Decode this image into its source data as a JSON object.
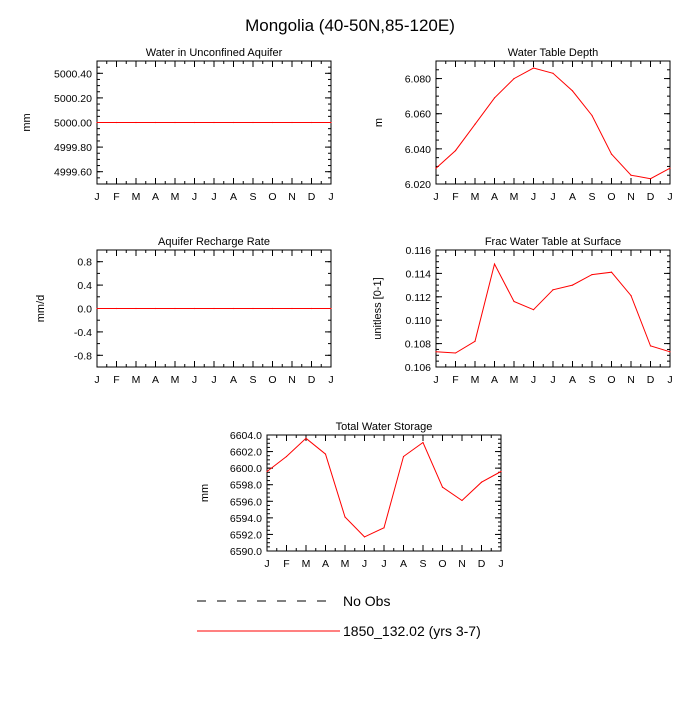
{
  "title": "Mongolia (40-50N,85-120E)",
  "months": [
    "J",
    "F",
    "M",
    "A",
    "M",
    "J",
    "J",
    "A",
    "S",
    "O",
    "N",
    "D",
    "J"
  ],
  "legend": {
    "obs_label": "No Obs",
    "model_label": "1850_132.02 (yrs 3-7)",
    "obs_color": "#000000",
    "model_color": "#ff0000"
  },
  "chart_data": [
    {
      "type": "line",
      "title": "Water in Unconfined Aquifer",
      "ylabel": "mm",
      "ylim": [
        4999.5,
        5000.5
      ],
      "yticks": [
        4999.6,
        4999.8,
        5000.0,
        5000.2,
        5000.4
      ],
      "ytick_labels": [
        "4999.60",
        "4999.80",
        "5000.00",
        "5000.20",
        "5000.40"
      ],
      "ytick_minor": 0.05,
      "x": [
        0,
        1,
        2,
        3,
        4,
        5,
        6,
        7,
        8,
        9,
        10,
        11,
        12
      ],
      "series": [
        {
          "name": "1850_132.02 (yrs 3-7)",
          "color": "#ff0000",
          "values": [
            5000,
            5000,
            5000,
            5000,
            5000,
            5000,
            5000,
            5000,
            5000,
            5000,
            5000,
            5000,
            5000
          ]
        }
      ]
    },
    {
      "type": "line",
      "title": "Water Table Depth",
      "ylabel": "m",
      "ylim": [
        6.02,
        6.09
      ],
      "yticks": [
        6.02,
        6.04,
        6.06,
        6.08
      ],
      "ytick_labels": [
        "6.020",
        "6.040",
        "6.060",
        "6.080"
      ],
      "ytick_minor": 0.005,
      "x": [
        0,
        1,
        2,
        3,
        4,
        5,
        6,
        7,
        8,
        9,
        10,
        11,
        12
      ],
      "series": [
        {
          "name": "1850_132.02 (yrs 3-7)",
          "color": "#ff0000",
          "values": [
            6.029,
            6.039,
            6.054,
            6.069,
            6.08,
            6.086,
            6.083,
            6.073,
            6.059,
            6.037,
            6.025,
            6.023,
            6.029
          ]
        }
      ]
    },
    {
      "type": "line",
      "title": "Aquifer Recharge Rate",
      "ylabel": "mm/d",
      "ylim": [
        -1.0,
        1.0
      ],
      "yticks": [
        -0.8,
        -0.4,
        0.0,
        0.4,
        0.8
      ],
      "ytick_labels": [
        "-0.8",
        "-0.4",
        "0.0",
        "0.4",
        "0.8"
      ],
      "ytick_minor": 0.2,
      "x": [
        0,
        1,
        2,
        3,
        4,
        5,
        6,
        7,
        8,
        9,
        10,
        11,
        12
      ],
      "series": [
        {
          "name": "1850_132.02 (yrs 3-7)",
          "color": "#ff0000",
          "values": [
            0,
            0,
            0,
            0,
            0,
            0,
            0,
            0,
            0,
            0,
            0,
            0,
            0
          ]
        }
      ]
    },
    {
      "type": "line",
      "title": "Frac Water Table at Surface",
      "ylabel": "unitless [0-1]",
      "ylim": [
        0.106,
        0.116
      ],
      "yticks": [
        0.106,
        0.108,
        0.11,
        0.112,
        0.114,
        0.116
      ],
      "ytick_labels": [
        "0.106",
        "0.108",
        "0.110",
        "0.112",
        "0.114",
        "0.116"
      ],
      "ytick_minor": 0.0005,
      "x": [
        0,
        1,
        2,
        3,
        4,
        5,
        6,
        7,
        8,
        9,
        10,
        11,
        12
      ],
      "series": [
        {
          "name": "1850_132.02 (yrs 3-7)",
          "color": "#ff0000",
          "values": [
            0.1073,
            0.1072,
            0.1082,
            0.1148,
            0.1116,
            0.1109,
            0.1126,
            0.113,
            0.1139,
            0.1141,
            0.1121,
            0.1078,
            0.1073
          ]
        }
      ]
    },
    {
      "type": "line",
      "title": "Total Water Storage",
      "ylabel": "mm",
      "ylim": [
        6590.0,
        6604.0
      ],
      "yticks": [
        6590,
        6592,
        6594,
        6596,
        6598,
        6600,
        6602,
        6604
      ],
      "ytick_labels": [
        "6590.0",
        "6592.0",
        "6594.0",
        "6596.0",
        "6598.0",
        "6600.0",
        "6602.0",
        "6604.0"
      ],
      "ytick_minor": 0.5,
      "x": [
        0,
        1,
        2,
        3,
        4,
        5,
        6,
        7,
        8,
        9,
        10,
        11,
        12
      ],
      "series": [
        {
          "name": "1850_132.02 (yrs 3-7)",
          "color": "#ff0000",
          "values": [
            6599.6,
            6601.4,
            6603.6,
            6601.7,
            6594.1,
            6591.7,
            6592.8,
            6601.4,
            6603.1,
            6597.7,
            6596.1,
            6598.3,
            6599.6
          ]
        }
      ]
    }
  ]
}
